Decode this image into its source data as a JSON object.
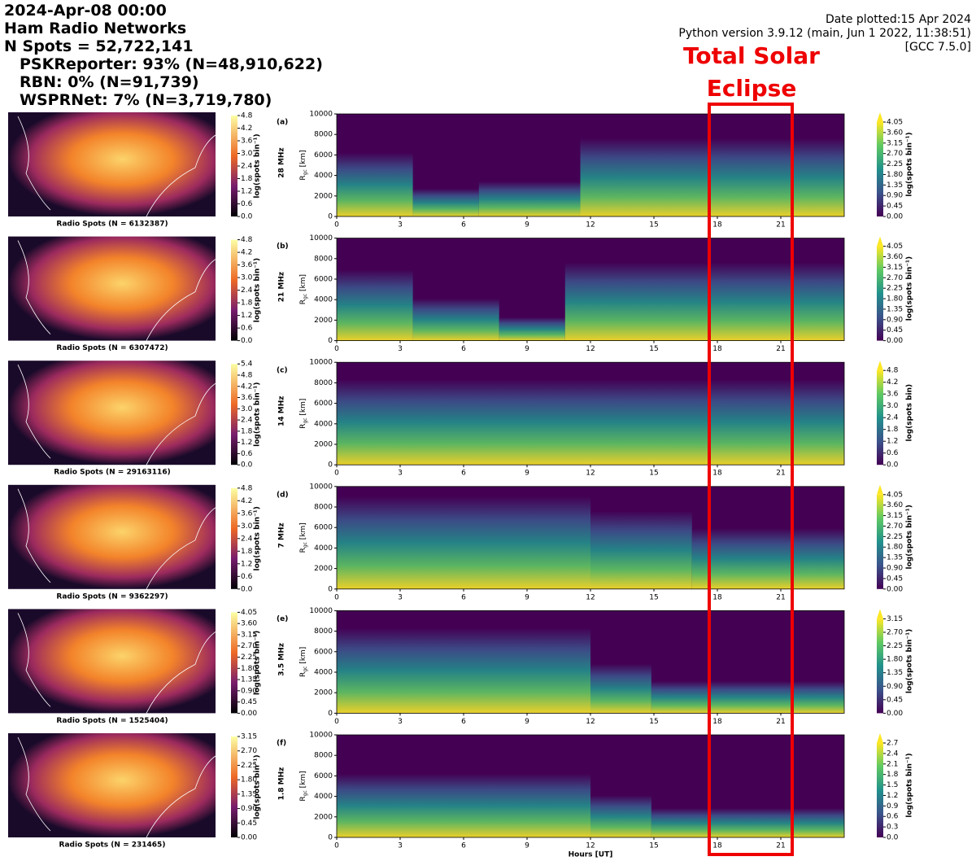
{
  "header": {
    "lines": [
      "2024-Apr-08 00:00",
      "Ham Radio Networks",
      "N Spots = 52,722,141",
      "PSKReporter: 93% (N=48,910,622)",
      "RBN: 0% (N=91,739)",
      "WSPRNet: 7% (N=3,719,780)"
    ],
    "meta": [
      "Date plotted:15 Apr 2024",
      "Python version 3.9.12 (main, Jun  1 2022, 11:38:51)",
      "[GCC 7.5.0]"
    ]
  },
  "annotation": [
    "Total Solar",
    "Eclipse"
  ],
  "chart_data": [
    {
      "type": "heatmap",
      "panel": "(a)",
      "band": "28 MHz",
      "map_caption": "Radio Spots (N = 6132387)",
      "map_colorbar": {
        "label": "log(spots bin⁻¹)",
        "lim": [
          0,
          4.8
        ],
        "ticks": [
          {
            "value": 0,
            "label": "0.0"
          },
          0.6,
          1.2,
          1.8,
          2.4,
          {
            "value": 3,
            "label": "3.0"
          },
          3.6,
          4.2,
          4.8
        ]
      },
      "ylabel": {
        "main": "R",
        "sub": "gc",
        "rest": " [km]"
      },
      "xlim": [
        0,
        24
      ],
      "xticks": [
        0,
        3,
        6,
        9,
        12,
        15,
        18,
        21
      ],
      "ylim": [
        0,
        10000
      ],
      "yticks": [
        0,
        2000,
        4000,
        6000,
        8000,
        10000
      ],
      "colorbar": {
        "label": "log(spots bin⁻¹)",
        "lim": [
          0,
          4.05
        ],
        "ticks": [
          {
            "value": 0,
            "label": "0.00"
          },
          0.45,
          {
            "value": 0.9,
            "label": "0.90"
          },
          1.35,
          {
            "value": 1.8,
            "label": "1.80"
          },
          2.25,
          {
            "value": 2.7,
            "label": "2.70"
          },
          3.15,
          {
            "value": 3.6,
            "label": "3.60"
          },
          4.05
        ]
      }
    },
    {
      "type": "heatmap",
      "panel": "(b)",
      "band": "21 MHz",
      "map_caption": "Radio Spots (N = 6307472)",
      "map_colorbar": {
        "label": "log(spots bin⁻¹)",
        "lim": [
          0,
          4.8
        ],
        "ticks": [
          {
            "value": 0,
            "label": "0.0"
          },
          0.6,
          1.2,
          1.8,
          2.4,
          {
            "value": 3,
            "label": "3.0"
          },
          3.6,
          4.2,
          4.8
        ]
      },
      "ylabel": {
        "main": "R",
        "sub": "gc",
        "rest": " [km]"
      },
      "xlim": [
        0,
        24
      ],
      "xticks": [
        0,
        3,
        6,
        9,
        12,
        15,
        18,
        21
      ],
      "ylim": [
        0,
        10000
      ],
      "yticks": [
        0,
        2000,
        4000,
        6000,
        8000,
        10000
      ],
      "colorbar": {
        "label": "log(spots bin⁻¹)",
        "lim": [
          0,
          4.05
        ],
        "ticks": [
          {
            "value": 0,
            "label": "0.00"
          },
          0.45,
          {
            "value": 0.9,
            "label": "0.90"
          },
          1.35,
          {
            "value": 1.8,
            "label": "1.80"
          },
          2.25,
          {
            "value": 2.7,
            "label": "2.70"
          },
          3.15,
          {
            "value": 3.6,
            "label": "3.60"
          },
          4.05
        ]
      }
    },
    {
      "type": "heatmap",
      "panel": "(c)",
      "band": "14 MHz",
      "map_caption": "Radio Spots (N = 29163116)",
      "map_colorbar": {
        "label": "log(spots bin⁻¹)",
        "lim": [
          0,
          5.4
        ],
        "ticks": [
          {
            "value": 0,
            "label": "0.0"
          },
          0.6,
          1.2,
          1.8,
          2.4,
          {
            "value": 3,
            "label": "3.0"
          },
          3.6,
          4.2,
          4.8,
          5.4
        ]
      },
      "ylabel": {
        "main": "R",
        "sub": "gc",
        "rest": " [km]"
      },
      "xlim": [
        0,
        24
      ],
      "xticks": [
        0,
        3,
        6,
        9,
        12,
        15,
        18,
        21
      ],
      "ylim": [
        0,
        10000
      ],
      "yticks": [
        0,
        2000,
        4000,
        6000,
        8000,
        10000
      ],
      "colorbar": {
        "label": "log(spots bin)",
        "lim": [
          0,
          4.8
        ],
        "ticks": [
          {
            "value": 0,
            "label": "0.0"
          },
          0.6,
          1.2,
          1.8,
          2.4,
          {
            "value": 3,
            "label": "3.0"
          },
          3.6,
          4.2,
          4.8
        ]
      }
    },
    {
      "type": "heatmap",
      "panel": "(d)",
      "band": "7 MHz",
      "map_caption": "Radio Spots (N = 9362297)",
      "map_colorbar": {
        "label": "log(spots bin⁻¹)",
        "lim": [
          0,
          4.8
        ],
        "ticks": [
          {
            "value": 0,
            "label": "0.0"
          },
          0.6,
          1.2,
          1.8,
          2.4,
          {
            "value": 3,
            "label": "3.0"
          },
          3.6,
          4.2,
          4.8
        ]
      },
      "ylabel": {
        "main": "R",
        "sub": "gc",
        "rest": " [km]"
      },
      "xlim": [
        0,
        24
      ],
      "xticks": [
        0,
        3,
        6,
        9,
        12,
        15,
        18,
        21
      ],
      "ylim": [
        0,
        10000
      ],
      "yticks": [
        0,
        2000,
        4000,
        6000,
        8000,
        10000
      ],
      "colorbar": {
        "label": "log(spots bin⁻¹)",
        "lim": [
          0,
          4.05
        ],
        "ticks": [
          {
            "value": 0,
            "label": "0.00"
          },
          0.45,
          {
            "value": 0.9,
            "label": "0.90"
          },
          1.35,
          {
            "value": 1.8,
            "label": "1.80"
          },
          2.25,
          {
            "value": 2.7,
            "label": "2.70"
          },
          3.15,
          {
            "value": 3.6,
            "label": "3.60"
          },
          4.05
        ]
      }
    },
    {
      "type": "heatmap",
      "panel": "(e)",
      "band": "3.5 MHz",
      "map_caption": "Radio Spots (N = 1525404)",
      "map_colorbar": {
        "label": "log(spots bin⁻¹)",
        "lim": [
          0,
          4.05
        ],
        "ticks": [
          {
            "value": 0,
            "label": "0.00"
          },
          0.45,
          {
            "value": 0.9,
            "label": "0.90"
          },
          1.35,
          {
            "value": 1.8,
            "label": "1.80"
          },
          2.25,
          {
            "value": 2.7,
            "label": "2.70"
          },
          3.15,
          {
            "value": 3.6,
            "label": "3.60"
          },
          4.05
        ]
      },
      "ylabel": {
        "main": "R",
        "sub": "gc",
        "rest": " [km]"
      },
      "xlim": [
        0,
        24
      ],
      "xticks": [
        0,
        3,
        6,
        9,
        12,
        15,
        18,
        21
      ],
      "ylim": [
        0,
        10000
      ],
      "yticks": [
        0,
        2000,
        4000,
        6000,
        8000,
        10000
      ],
      "colorbar": {
        "label": "log(spots bin⁻¹)",
        "lim": [
          0,
          3.15
        ],
        "ticks": [
          {
            "value": 0,
            "label": "0.00"
          },
          0.45,
          {
            "value": 0.9,
            "label": "0.90"
          },
          1.35,
          {
            "value": 1.8,
            "label": "1.80"
          },
          2.25,
          {
            "value": 2.7,
            "label": "2.70"
          },
          3.15
        ]
      }
    },
    {
      "type": "heatmap",
      "panel": "(f)",
      "band": "1.8 MHz",
      "map_caption": "Radio Spots (N = 231465)",
      "map_colorbar": {
        "label": "log(spots bin⁻¹)",
        "lim": [
          0,
          3.15
        ],
        "ticks": [
          {
            "value": 0,
            "label": "0.00"
          },
          0.45,
          {
            "value": 0.9,
            "label": "0.90"
          },
          1.35,
          {
            "value": 1.8,
            "label": "1.80"
          },
          2.25,
          {
            "value": 2.7,
            "label": "2.70"
          },
          3.15
        ]
      },
      "ylabel": {
        "main": "R",
        "sub": "gc",
        "rest": " [km]"
      },
      "xlim": [
        0,
        24
      ],
      "xticks": [
        0,
        3,
        6,
        9,
        12,
        15,
        18,
        21
      ],
      "ylim": [
        0,
        10000
      ],
      "yticks": [
        0,
        2000,
        4000,
        6000,
        8000,
        10000
      ],
      "xlabel": "Hours [UT]",
      "colorbar": {
        "label": "log(spots bin⁻¹)",
        "lim": [
          0,
          2.7
        ],
        "ticks": [
          {
            "value": 0,
            "label": "0.0"
          },
          0.3,
          0.6,
          0.9,
          1.2,
          1.5,
          1.8,
          2.1,
          2.4,
          2.7
        ]
      }
    }
  ]
}
